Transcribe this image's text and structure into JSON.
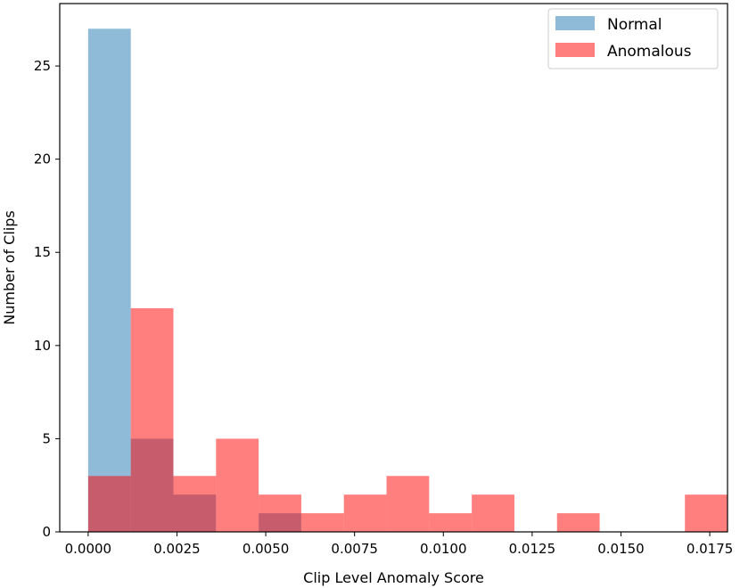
{
  "chart_data": {
    "type": "histogram",
    "xlabel": "Clip Level Anomaly Score",
    "ylabel": "Number of Clips",
    "xlim": [
      -0.0008,
      0.018
    ],
    "ylim": [
      0,
      28.35
    ],
    "xticks": [
      0.0,
      0.0025,
      0.005,
      0.0075,
      0.01,
      0.0125,
      0.015,
      0.0175
    ],
    "xtick_labels": [
      "0.0000",
      "0.0025",
      "0.0050",
      "0.0075",
      "0.0100",
      "0.0125",
      "0.0150",
      "0.0175"
    ],
    "yticks": [
      0,
      5,
      10,
      15,
      20,
      25
    ],
    "ytick_labels": [
      "0",
      "5",
      "10",
      "15",
      "20",
      "25"
    ],
    "grid": false,
    "legend_position": "top-right",
    "series": [
      {
        "name": "Normal",
        "color": "#1f77b4",
        "alpha": 0.5,
        "bins": [
          {
            "x0": 0.0,
            "x1": 0.0012,
            "count": 27
          },
          {
            "x0": 0.0012,
            "x1": 0.0024,
            "count": 5
          },
          {
            "x0": 0.0024,
            "x1": 0.0036,
            "count": 2
          },
          {
            "x0": 0.0048,
            "x1": 0.006,
            "count": 1
          }
        ]
      },
      {
        "name": "Anomalous",
        "color": "#ff0000",
        "alpha": 0.5,
        "bins": [
          {
            "x0": 0.0,
            "x1": 0.0012,
            "count": 3
          },
          {
            "x0": 0.0012,
            "x1": 0.0024,
            "count": 12
          },
          {
            "x0": 0.0024,
            "x1": 0.0036,
            "count": 3
          },
          {
            "x0": 0.0036,
            "x1": 0.0048,
            "count": 5
          },
          {
            "x0": 0.0048,
            "x1": 0.006,
            "count": 2
          },
          {
            "x0": 0.006,
            "x1": 0.0072,
            "count": 1
          },
          {
            "x0": 0.0072,
            "x1": 0.0084,
            "count": 2
          },
          {
            "x0": 0.0084,
            "x1": 0.0096,
            "count": 3
          },
          {
            "x0": 0.0096,
            "x1": 0.0108,
            "count": 1
          },
          {
            "x0": 0.0108,
            "x1": 0.012,
            "count": 2
          },
          {
            "x0": 0.012,
            "x1": 0.0132,
            "count": 0
          },
          {
            "x0": 0.0132,
            "x1": 0.0144,
            "count": 1
          },
          {
            "x0": 0.0144,
            "x1": 0.0156,
            "count": 0
          },
          {
            "x0": 0.0156,
            "x1": 0.0168,
            "count": 0
          },
          {
            "x0": 0.0168,
            "x1": 0.018,
            "count": 2
          }
        ]
      }
    ]
  }
}
